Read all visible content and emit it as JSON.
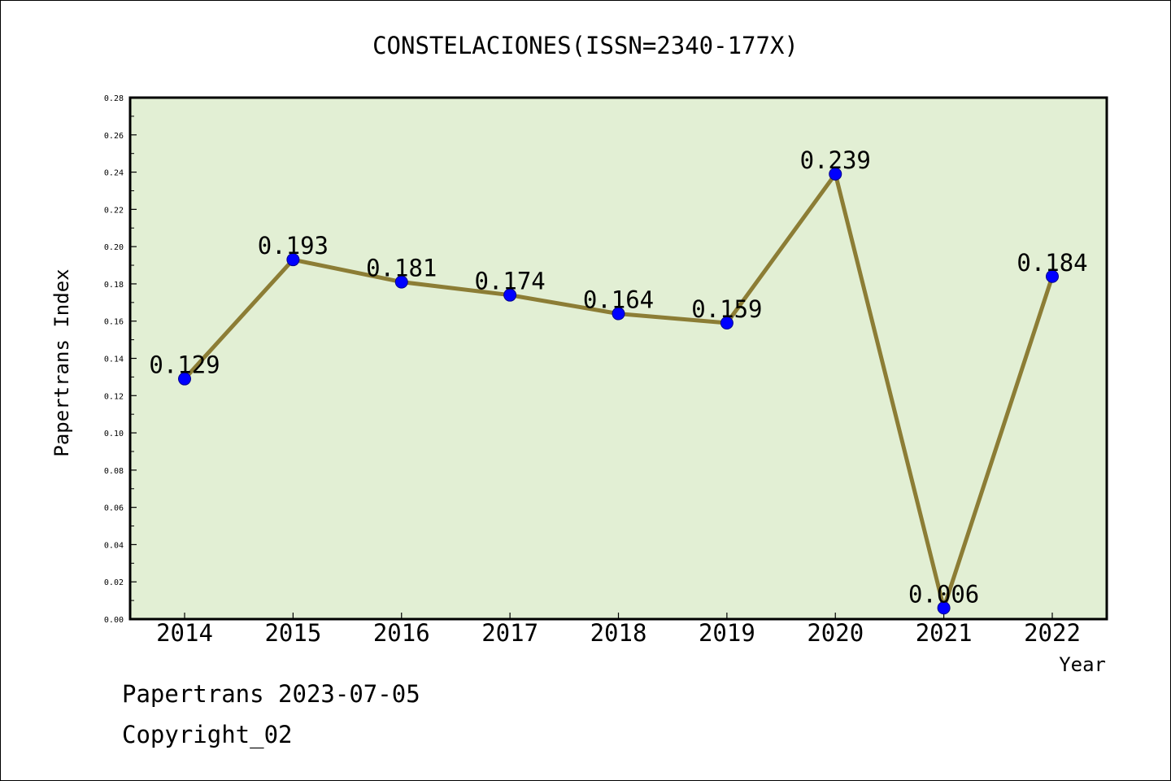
{
  "chart_data": {
    "type": "line",
    "title": "CONSTELACIONES(ISSN=2340-177X)",
    "xlabel": "Year",
    "ylabel": "Papertrans Index",
    "categories": [
      "2014",
      "2015",
      "2016",
      "2017",
      "2018",
      "2019",
      "2020",
      "2021",
      "2022"
    ],
    "series": [
      {
        "values": [
          0.129,
          0.193,
          0.181,
          0.174,
          0.164,
          0.159,
          0.239,
          0.006,
          0.184
        ],
        "data_labels": [
          "0.129",
          "0.193",
          "0.181",
          "0.174",
          "0.164",
          "0.159",
          "0.239",
          "0.006",
          "0.184"
        ]
      }
    ],
    "ylim": [
      0,
      0.28
    ],
    "yticks": [
      "0.00",
      "0.02",
      "0.04",
      "0.06",
      "0.08",
      "0.10",
      "0.12",
      "0.14",
      "0.16",
      "0.18",
      "0.20",
      "0.22",
      "0.24",
      "0.26",
      "0.28"
    ],
    "grid": false,
    "legend": "none",
    "colors": {
      "plot_background": "#e2efd4",
      "line": "#8c7d35",
      "marker": "#0000ff"
    }
  },
  "footer": {
    "line1": "Papertrans 2023-07-05",
    "line2": "Copyright_02"
  }
}
